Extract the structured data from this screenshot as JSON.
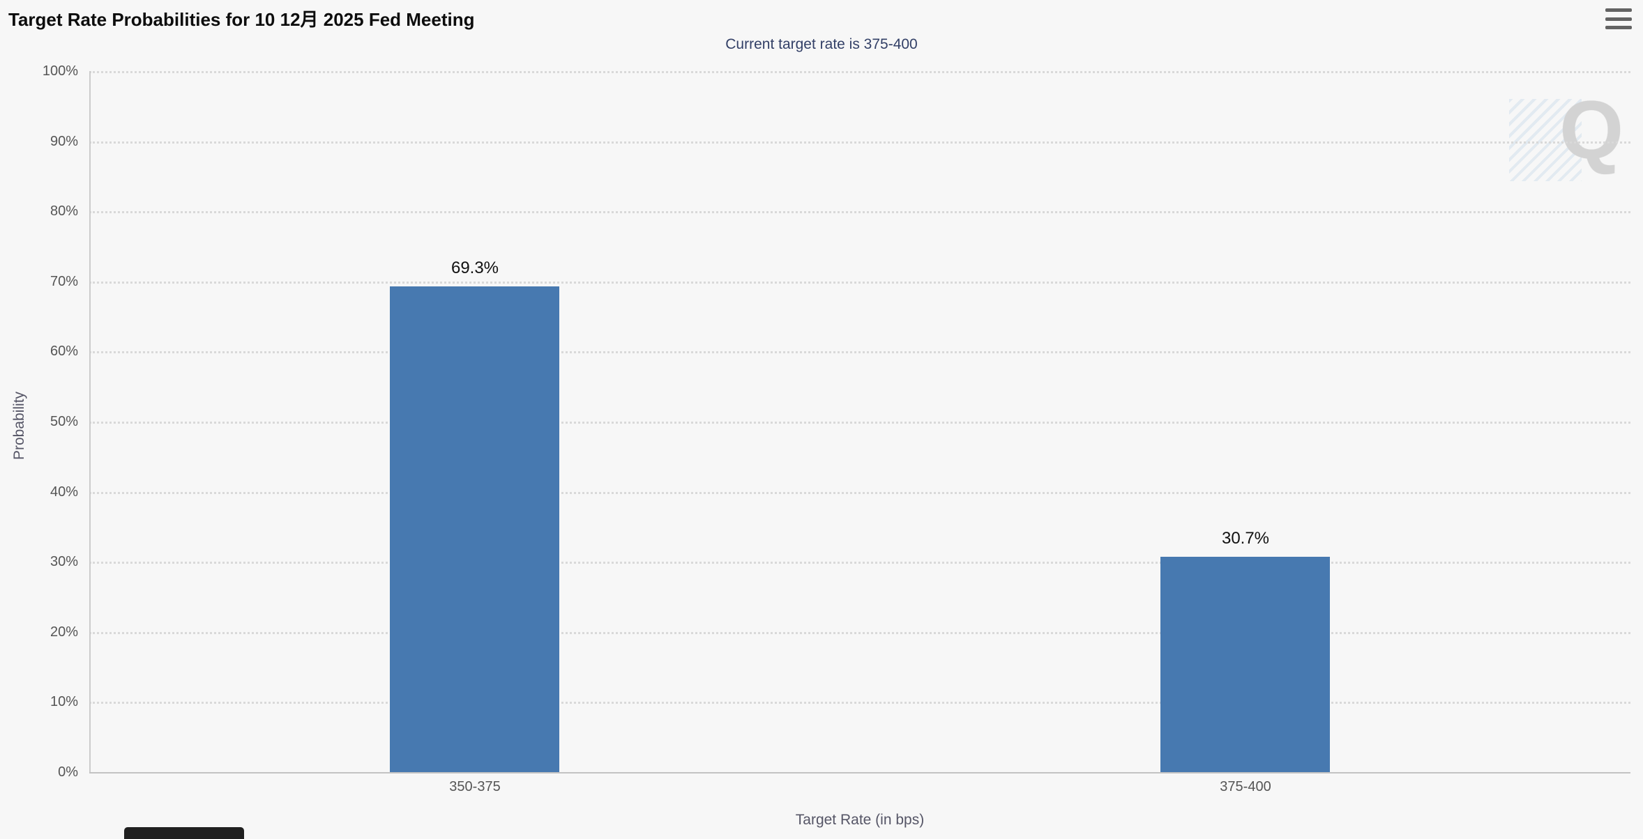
{
  "icons": {
    "context_menu": "hamburger-menu"
  },
  "colors": {
    "background": "#f7f7f7",
    "bar": "#4779b0",
    "subtitle": "#334067",
    "title": "#0d0d0d",
    "tick_label": "#555555",
    "axis_title": "#555566",
    "grid": "#d9d9d9",
    "axis_line": "#c3c3c3"
  },
  "watermark": {
    "letter": "Q"
  },
  "chart_data": {
    "type": "bar",
    "title": "Target Rate Probabilities for 10 12月 2025 Fed Meeting",
    "subtitle": "Current target rate is 375-400",
    "categories": [
      "350-375",
      "375-400"
    ],
    "values": [
      69.3,
      30.7
    ],
    "value_labels": [
      "69.3%",
      "30.7%"
    ],
    "xlabel": "Target Rate (in bps)",
    "ylabel": "Probability",
    "ylim": [
      0,
      100
    ],
    "ytick_interval": 10,
    "ytick_suffix": "%",
    "grid": "dotted-horizontal",
    "legend": "none",
    "bar_color": "#4779b0",
    "bar_width_fraction": 0.22
  }
}
